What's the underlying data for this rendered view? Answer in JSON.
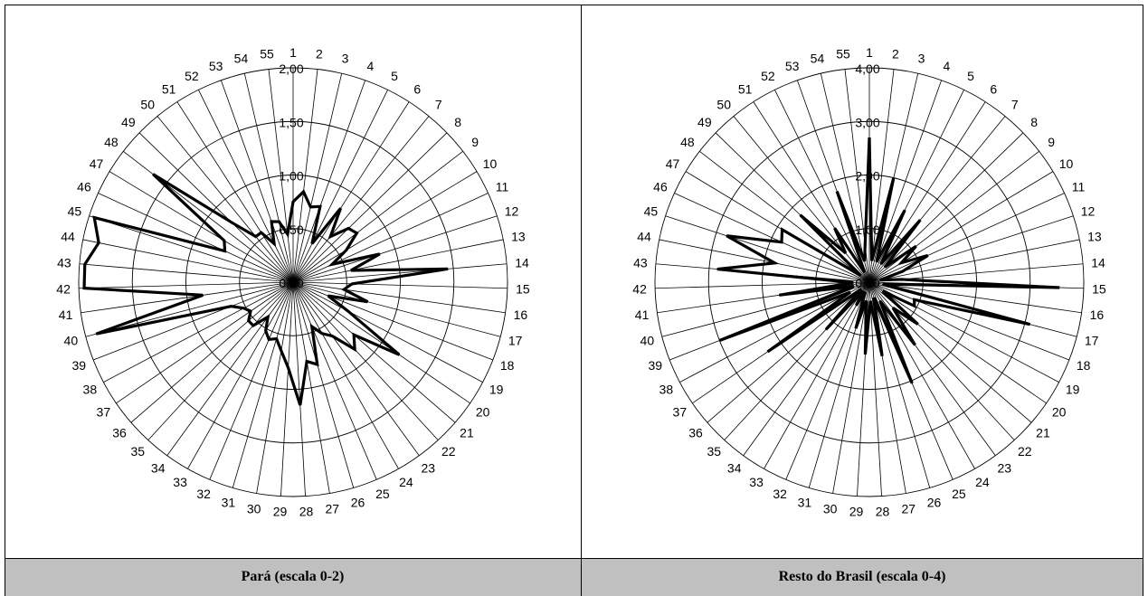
{
  "chart_data": [
    {
      "type": "radar",
      "caption": "Pará (escala 0-2)",
      "categories": [
        "1",
        "2",
        "3",
        "4",
        "5",
        "6",
        "7",
        "8",
        "9",
        "10",
        "11",
        "12",
        "13",
        "14",
        "15",
        "16",
        "17",
        "18",
        "19",
        "20",
        "21",
        "22",
        "23",
        "24",
        "25",
        "26",
        "27",
        "28",
        "29",
        "30",
        "31",
        "32",
        "33",
        "34",
        "35",
        "36",
        "37",
        "38",
        "39",
        "40",
        "41",
        "42",
        "43",
        "44",
        "45",
        "46",
        "47",
        "48",
        "49",
        "50",
        "51",
        "52",
        "53",
        "54",
        "55"
      ],
      "rlim": [
        0,
        2
      ],
      "rticks": [
        "0,00",
        "0,50",
        "1,00",
        "1,50",
        "2,00"
      ],
      "rtick_values": [
        0,
        0.5,
        1,
        1.5,
        2
      ],
      "series": [
        {
          "values": [
            0.75,
            0.85,
            0.72,
            0.75,
            0.4,
            0.82,
            0.55,
            0.72,
            0.75,
            0.58,
            0.4,
            0.85,
            0.55,
            1.45,
            0.55,
            0.48,
            0.72,
            0.35,
            0.58,
            1.2,
            0.75,
            0.85,
            0.62,
            0.55,
            0.45,
            0.8,
            0.75,
            1.15,
            0.8,
            0.65,
            0.55,
            0.58,
            0.52,
            0.4,
            0.55,
            0.55,
            0.48,
            0.52,
            0.62,
            1.9,
            0.85,
            1.95,
            1.95,
            1.85,
            1.95,
            0.7,
            0.75,
            1.65,
            0.8,
            0.55,
            0.55,
            0.4,
            0.6,
            0.58,
            0.45
          ],
          "color": "#000000"
        }
      ]
    },
    {
      "type": "radar",
      "caption": "Resto do Brasil (escala 0-4)",
      "categories": [
        "1",
        "2",
        "3",
        "4",
        "5",
        "6",
        "7",
        "8",
        "9",
        "10",
        "11",
        "12",
        "13",
        "14",
        "15",
        "16",
        "17",
        "18",
        "19",
        "20",
        "21",
        "22",
        "23",
        "24",
        "25",
        "26",
        "27",
        "28",
        "29",
        "30",
        "31",
        "32",
        "33",
        "34",
        "35",
        "36",
        "37",
        "38",
        "39",
        "40",
        "41",
        "42",
        "43",
        "44",
        "45",
        "46",
        "47",
        "48",
        "49",
        "50",
        "51",
        "52",
        "53",
        "54",
        "55"
      ],
      "rlim": [
        0,
        4
      ],
      "rticks": [
        "0,00",
        "1,00",
        "2,00",
        "3,00",
        "4,00"
      ],
      "rtick_values": [
        0,
        1,
        2,
        3,
        4
      ],
      "series": [
        {
          "values": [
            2.7,
            0.4,
            2.0,
            0.4,
            1.5,
            0.4,
            1.5,
            0.4,
            1.1,
            0.7,
            1.2,
            0.65,
            0.2,
            0.6,
            3.55,
            0.25,
            3.1,
            0.9,
            0.95,
            0.3,
            1.2,
            0.65,
            1.45,
            0.4,
            2.05,
            0.3,
            1.4,
            0.35,
            1.35,
            0.35,
            0.9,
            0.2,
            0.5,
            0.2,
            1.2,
            0.2,
            2.3,
            0.4,
            3.0,
            0.3,
            1.7,
            0.3,
            2.85,
            1.8,
            2.8,
            1.8,
            1.9,
            0.2,
            1.8,
            0.7,
            1.2,
            0.2,
            1.8,
            0.4,
            0.7
          ],
          "color": "#000000"
        }
      ]
    }
  ]
}
